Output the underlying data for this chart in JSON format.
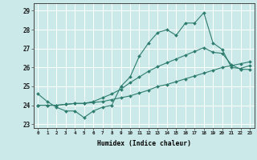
{
  "xlabel": "Humidex (Indice chaleur)",
  "ylabel": "",
  "bg_color": "#cce9e9",
  "grid_color": "#ffffff",
  "line_color": "#2d7d6e",
  "xlim": [
    -0.5,
    23.5
  ],
  "ylim": [
    22.8,
    29.4
  ],
  "yticks": [
    23,
    24,
    25,
    26,
    27,
    28,
    29
  ],
  "xticks": [
    0,
    1,
    2,
    3,
    4,
    5,
    6,
    7,
    8,
    9,
    10,
    11,
    12,
    13,
    14,
    15,
    16,
    17,
    18,
    19,
    20,
    21,
    22,
    23
  ],
  "series1": {
    "x": [
      0,
      1,
      2,
      3,
      4,
      5,
      6,
      7,
      8,
      9,
      10,
      11,
      12,
      13,
      14,
      15,
      16,
      17,
      18,
      19,
      20,
      21,
      22,
      23
    ],
    "y": [
      24.6,
      24.2,
      23.9,
      23.7,
      23.7,
      23.35,
      23.7,
      23.9,
      24.0,
      25.0,
      25.5,
      26.6,
      27.3,
      27.85,
      28.0,
      27.7,
      28.35,
      28.35,
      28.9,
      27.3,
      26.95,
      26.0,
      25.95,
      26.1
    ]
  },
  "series2": {
    "x": [
      0,
      1,
      2,
      3,
      4,
      5,
      6,
      7,
      8,
      9,
      10,
      11,
      12,
      13,
      14,
      15,
      16,
      17,
      18,
      19,
      20,
      21,
      22,
      23
    ],
    "y": [
      24.0,
      24.0,
      24.0,
      24.05,
      24.1,
      24.1,
      24.15,
      24.2,
      24.3,
      24.4,
      24.5,
      24.65,
      24.8,
      25.0,
      25.1,
      25.25,
      25.4,
      25.55,
      25.7,
      25.85,
      26.0,
      26.1,
      26.2,
      26.3
    ]
  },
  "series3": {
    "x": [
      0,
      1,
      2,
      3,
      4,
      5,
      6,
      7,
      8,
      9,
      10,
      11,
      12,
      13,
      14,
      15,
      16,
      17,
      18,
      19,
      20,
      21,
      22,
      23
    ],
    "y": [
      24.0,
      24.0,
      24.0,
      24.05,
      24.1,
      24.1,
      24.2,
      24.4,
      24.6,
      24.85,
      25.2,
      25.5,
      25.8,
      26.05,
      26.25,
      26.45,
      26.65,
      26.85,
      27.05,
      26.8,
      26.75,
      26.15,
      25.9,
      25.9
    ]
  }
}
